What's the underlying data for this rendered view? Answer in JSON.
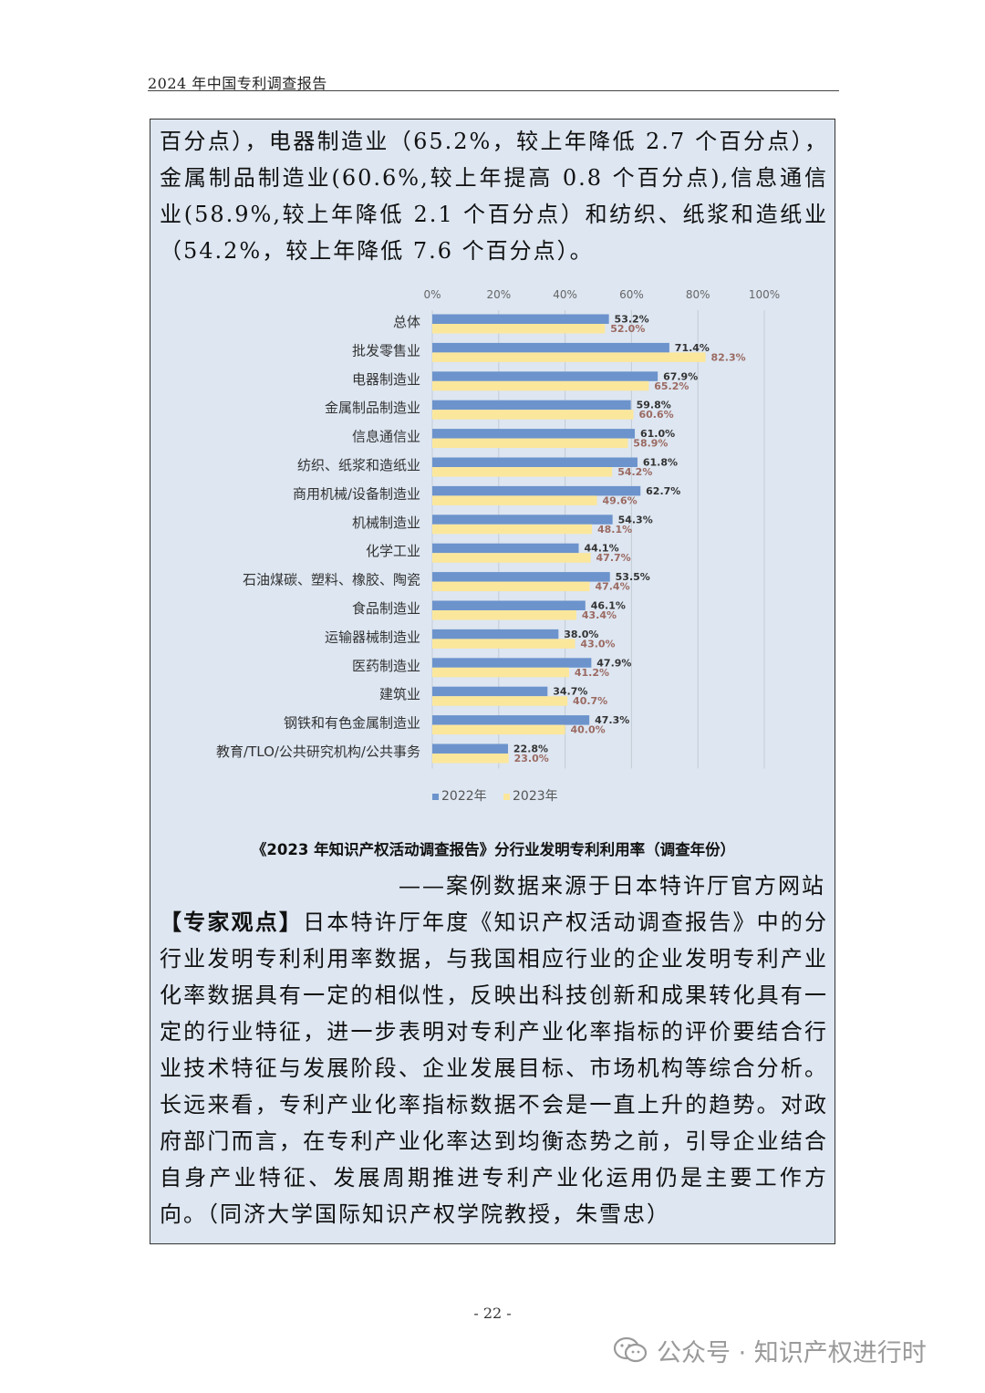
{
  "header": {
    "title": "2024 年中国专利调查报告"
  },
  "intro_text": "百分点），电器制造业（65.2%，较上年降低 2.7 个百分点），金属制品制造业(60.6%,较上年提高 0.8 个百分点),信息通信业(58.9%,较上年降低 2.1 个百分点）和纺织、纸浆和造纸业（54.2%，较上年降低 7.6 个百分点）。",
  "chart_data": {
    "type": "bar",
    "orientation": "horizontal",
    "x_ticks": [
      "0%",
      "20%",
      "40%",
      "60%",
      "80%",
      "100%"
    ],
    "xlim": [
      0,
      100
    ],
    "categories": [
      "总体",
      "批发零售业",
      "电器制造业",
      "金属制品制造业",
      "信息通信业",
      "纺织、纸浆和造纸业",
      "商用机械/设备制造业",
      "机械制造业",
      "化学工业",
      "石油煤碳、塑料、橡胶、陶瓷",
      "食品制造业",
      "运输器械制造业",
      "医药制造业",
      "建筑业",
      "钢铁和有色金属制造业",
      "教育/TLO/公共研究机构/公共事务"
    ],
    "series": [
      {
        "name": "2022年",
        "color": "#6c93cc",
        "label_color": "#333333",
        "values": [
          53.2,
          71.4,
          67.9,
          59.8,
          61.0,
          61.8,
          62.7,
          54.3,
          44.1,
          53.5,
          46.1,
          38.0,
          47.9,
          34.7,
          47.3,
          22.8
        ],
        "labels": [
          "53.2%",
          "71.4%",
          "67.9%",
          "59.8%",
          "61.0%",
          "61.8%",
          "62.7%",
          "54.3%",
          "44.1%",
          "53.5%",
          "46.1%",
          "38.0%",
          "47.9%",
          "34.7%",
          "47.3%",
          "22.8%"
        ]
      },
      {
        "name": "2023年",
        "color": "#fbe79c",
        "label_color": "#9b6a62",
        "values": [
          52.0,
          82.3,
          65.2,
          60.6,
          58.9,
          54.2,
          49.6,
          48.1,
          47.7,
          47.4,
          43.4,
          43.0,
          41.2,
          40.7,
          40.0,
          23.0
        ],
        "labels": [
          "52.0%",
          "82.3%",
          "65.2%",
          "60.6%",
          "58.9%",
          "54.2%",
          "49.6%",
          "48.1%",
          "47.7%",
          "47.4%",
          "43.4%",
          "43.0%",
          "41.2%",
          "40.7%",
          "40.0%",
          "23.0%"
        ]
      }
    ],
    "grid": true,
    "legend": "bottom"
  },
  "caption": "《2023 年知识产权活动调查报告》分行业发明专利利用率（调查年份）",
  "source": "——案例数据来源于日本特许厅官方网站",
  "expert": {
    "label": "【专家观点】",
    "text": "日本特许厅年度《知识产权活动调查报告》中的分行业发明专利利用率数据，与我国相应行业的企业发明专利产业化率数据具有一定的相似性，反映出科技创新和成果转化具有一定的行业特征，进一步表明对专利产业化率指标的评价要结合行业技术特征与发展阶段、企业发展目标、市场机构等综合分析。长远来看，专利产业化率指标数据不会是一直上升的趋势。对政府部门而言，在专利产业化率达到均衡态势之前，引导企业结合自身产业特征、发展周期推进专利产业化运用仍是主要工作方向。（同济大学国际知识产权学院教授，朱雪忠）"
  },
  "page_number": "- 22 -",
  "watermark": {
    "text": "公众号 · 知识产权进行时",
    "icon": "wechat-icon"
  }
}
